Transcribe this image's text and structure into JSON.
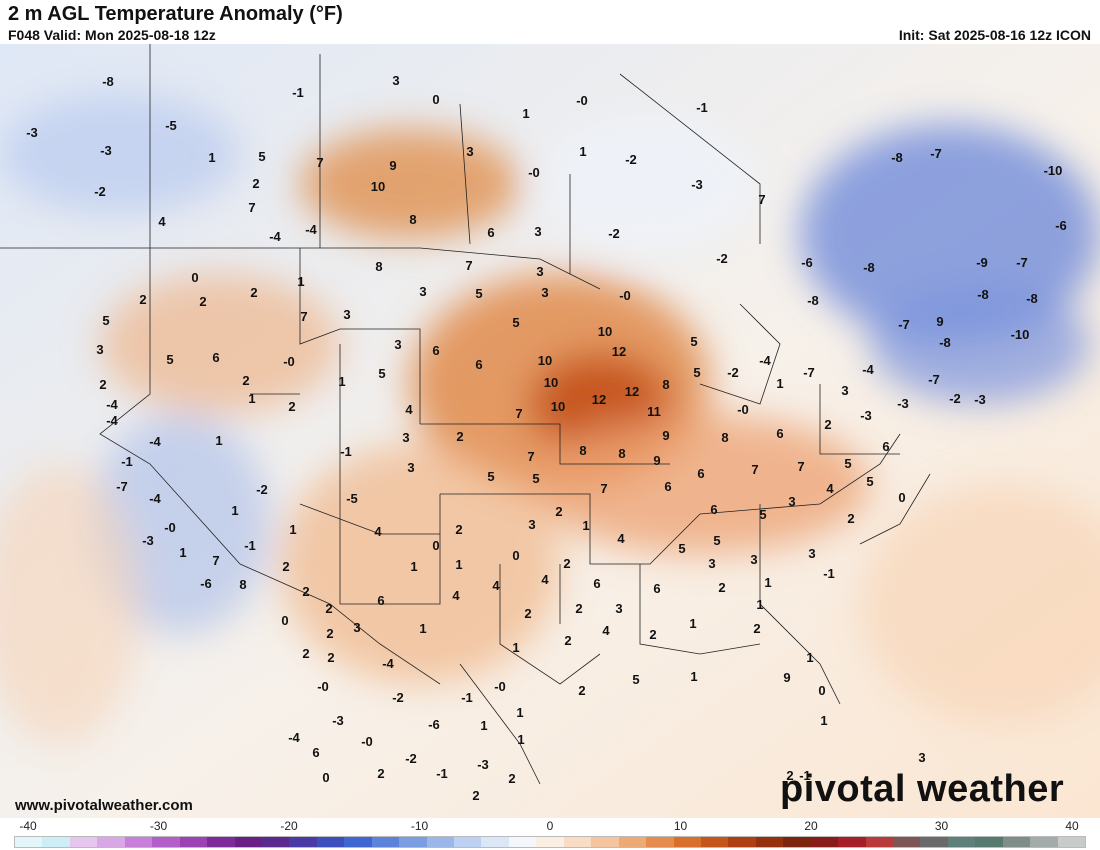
{
  "header": {
    "title": "2 m AGL Temperature Anomaly (°F)",
    "valid": "F048 Valid: Mon 2025-08-18 12z",
    "init": "Init: Sat 2025-08-16 12z ICON"
  },
  "footer": {
    "site": "www.pivotalweather.com",
    "brand": "pivotal weather"
  },
  "colorbar": {
    "ticks": [
      "-40",
      "-30",
      "-20",
      "-10",
      "0",
      "10",
      "20",
      "30",
      "40"
    ],
    "colors": [
      "#e3f7fb",
      "#cdeef6",
      "#e6c6ef",
      "#d9a6e6",
      "#c77fd9",
      "#b25fc9",
      "#9b43b5",
      "#7f2a9b",
      "#6a1f86",
      "#5c2a8f",
      "#4a3aa6",
      "#3d4fbd",
      "#3f66d1",
      "#5c82d9",
      "#7b9ee2",
      "#9bb7ea",
      "#bcd0f1",
      "#dbe6f7",
      "#f3f6fb",
      "#fbeee3",
      "#f8dcc4",
      "#f3c49d",
      "#eeaa74",
      "#e58c4c",
      "#d86f2b",
      "#c5561b",
      "#ad3f12",
      "#94300e",
      "#7d2410",
      "#8a1b1b",
      "#a51f2a",
      "#b93a3a",
      "#7d5656",
      "#6b6a6a",
      "#5e7f7a",
      "#567a70",
      "#7f8e89",
      "#a3acaa",
      "#c7cbca"
    ]
  },
  "map_labels": [
    [
      "-8",
      108,
      81
    ],
    [
      "-1",
      298,
      92
    ],
    [
      "3",
      396,
      80
    ],
    [
      "0",
      436,
      99
    ],
    [
      "-0",
      582,
      100
    ],
    [
      "-1",
      702,
      107
    ],
    [
      "-5",
      171,
      125
    ],
    [
      "-3",
      32,
      132
    ],
    [
      "1",
      526,
      113
    ],
    [
      "-3",
      106,
      150
    ],
    [
      "1",
      212,
      157
    ],
    [
      "5",
      262,
      156
    ],
    [
      "7",
      320,
      162
    ],
    [
      "9",
      393,
      165
    ],
    [
      "3",
      470,
      151
    ],
    [
      "1",
      583,
      151
    ],
    [
      "-2",
      631,
      159
    ],
    [
      "-8",
      897,
      157
    ],
    [
      "-7",
      936,
      153
    ],
    [
      "-10",
      1053,
      170
    ],
    [
      "-2",
      100,
      191
    ],
    [
      "2",
      256,
      183
    ],
    [
      "10",
      378,
      186
    ],
    [
      "-0",
      534,
      172
    ],
    [
      "-3",
      697,
      184
    ],
    [
      "7",
      762,
      199
    ],
    [
      "4",
      162,
      221
    ],
    [
      "7",
      252,
      207
    ],
    [
      "8",
      413,
      219
    ],
    [
      "6",
      491,
      232
    ],
    [
      "3",
      538,
      231
    ],
    [
      "-4",
      275,
      236
    ],
    [
      "-4",
      311,
      229
    ],
    [
      "-2",
      614,
      233
    ],
    [
      "-6",
      1061,
      225
    ],
    [
      "-2",
      722,
      258
    ],
    [
      "-6",
      807,
      262
    ],
    [
      "-8",
      869,
      267
    ],
    [
      "-9",
      982,
      262
    ],
    [
      "-7",
      1022,
      262
    ],
    [
      "0",
      195,
      277
    ],
    [
      "1",
      301,
      281
    ],
    [
      "8",
      379,
      266
    ],
    [
      "7",
      469,
      265
    ],
    [
      "3",
      540,
      271
    ],
    [
      "-8",
      983,
      294
    ],
    [
      "-8",
      1032,
      298
    ],
    [
      "2",
      143,
      299
    ],
    [
      "2",
      203,
      301
    ],
    [
      "2",
      254,
      292
    ],
    [
      "3",
      423,
      291
    ],
    [
      "5",
      479,
      293
    ],
    [
      "3",
      545,
      292
    ],
    [
      "-0",
      625,
      295
    ],
    [
      "-8",
      813,
      300
    ],
    [
      "5",
      106,
      320
    ],
    [
      "7",
      304,
      316
    ],
    [
      "3",
      347,
      314
    ],
    [
      "5",
      516,
      322
    ],
    [
      "10",
      605,
      331
    ],
    [
      "-7",
      904,
      324
    ],
    [
      "9",
      940,
      321
    ],
    [
      "-10",
      1020,
      334
    ],
    [
      "3",
      100,
      349
    ],
    [
      "5",
      170,
      359
    ],
    [
      "6",
      216,
      357
    ],
    [
      "-0",
      289,
      361
    ],
    [
      "3",
      398,
      344
    ],
    [
      "6",
      436,
      350
    ],
    [
      "6",
      479,
      364
    ],
    [
      "10",
      545,
      360
    ],
    [
      "12",
      619,
      351
    ],
    [
      "5",
      694,
      341
    ],
    [
      "-8",
      945,
      342
    ],
    [
      "2",
      103,
      384
    ],
    [
      "2",
      246,
      380
    ],
    [
      "1",
      342,
      381
    ],
    [
      "5",
      382,
      373
    ],
    [
      "10",
      551,
      382
    ],
    [
      "8",
      666,
      384
    ],
    [
      "-4",
      765,
      360
    ],
    [
      "-2",
      733,
      372
    ],
    [
      "-7",
      809,
      372
    ],
    [
      "-4",
      868,
      369
    ],
    [
      "-7",
      934,
      379
    ],
    [
      "-4",
      112,
      420
    ],
    [
      "-4",
      155,
      441
    ],
    [
      "1",
      219,
      440
    ],
    [
      "2",
      292,
      406
    ],
    [
      "4",
      409,
      409
    ],
    [
      "7",
      519,
      413
    ],
    [
      "10",
      558,
      406
    ],
    [
      "12",
      599,
      399
    ],
    [
      "12",
      632,
      391
    ],
    [
      "11",
      654,
      411
    ],
    [
      "5",
      697,
      372
    ],
    [
      "1",
      780,
      383
    ],
    [
      "3",
      845,
      390
    ],
    [
      "-3",
      903,
      403
    ],
    [
      "-2",
      955,
      398
    ],
    [
      "-3",
      980,
      399
    ],
    [
      "-1",
      127,
      461
    ],
    [
      "1",
      252,
      398
    ],
    [
      "-1",
      346,
      451
    ],
    [
      "3",
      406,
      437
    ],
    [
      "2",
      460,
      436
    ],
    [
      "7",
      531,
      456
    ],
    [
      "8",
      583,
      450
    ],
    [
      "8",
      622,
      453
    ],
    [
      "9",
      666,
      435
    ],
    [
      "8",
      725,
      437
    ],
    [
      "-0",
      743,
      409
    ],
    [
      "6",
      780,
      433
    ],
    [
      "2",
      828,
      424
    ],
    [
      "-3",
      866,
      415
    ],
    [
      "6",
      886,
      446
    ],
    [
      "7",
      755,
      469
    ],
    [
      "7",
      801,
      466
    ],
    [
      "5",
      848,
      463
    ],
    [
      "-4",
      112,
      404
    ],
    [
      "3",
      411,
      467
    ],
    [
      "5",
      491,
      476
    ],
    [
      "5",
      536,
      478
    ],
    [
      "9",
      657,
      460
    ],
    [
      "6",
      701,
      473
    ],
    [
      "7",
      604,
      488
    ],
    [
      "6",
      668,
      486
    ],
    [
      "5",
      870,
      481
    ],
    [
      "4",
      830,
      488
    ],
    [
      "-2",
      262,
      489
    ],
    [
      "-5",
      352,
      498
    ],
    [
      "-7",
      122,
      486
    ],
    [
      "-4",
      155,
      498
    ],
    [
      "1",
      235,
      510
    ],
    [
      "1",
      293,
      529
    ],
    [
      "4",
      378,
      531
    ],
    [
      "2",
      459,
      529
    ],
    [
      "2",
      559,
      511
    ],
    [
      "3",
      532,
      524
    ],
    [
      "1",
      586,
      525
    ],
    [
      "6",
      714,
      509
    ],
    [
      "5",
      763,
      514
    ],
    [
      "3",
      792,
      501
    ],
    [
      "2",
      851,
      518
    ],
    [
      "0",
      902,
      497
    ],
    [
      "-0",
      170,
      527
    ],
    [
      "-3",
      148,
      540
    ],
    [
      "-1",
      250,
      545
    ],
    [
      "0",
      436,
      545
    ],
    [
      "4",
      621,
      538
    ],
    [
      "5",
      682,
      548
    ],
    [
      "5",
      717,
      540
    ],
    [
      "3",
      754,
      559
    ],
    [
      "3",
      812,
      553
    ],
    [
      "1",
      183,
      552
    ],
    [
      "7",
      216,
      560
    ],
    [
      "1",
      414,
      566
    ],
    [
      "1",
      459,
      564
    ],
    [
      "0",
      516,
      555
    ],
    [
      "2",
      567,
      563
    ],
    [
      "-6",
      206,
      583
    ],
    [
      "8",
      243,
      584
    ],
    [
      "2",
      286,
      566
    ],
    [
      "4",
      456,
      595
    ],
    [
      "4",
      496,
      585
    ],
    [
      "4",
      545,
      579
    ],
    [
      "6",
      597,
      583
    ],
    [
      "3",
      712,
      563
    ],
    [
      "2",
      722,
      587
    ],
    [
      "1",
      768,
      582
    ],
    [
      "-1",
      829,
      573
    ],
    [
      "2",
      306,
      591
    ],
    [
      "0",
      285,
      620
    ],
    [
      "2",
      329,
      608
    ],
    [
      "6",
      381,
      600
    ],
    [
      "2",
      528,
      613
    ],
    [
      "2",
      579,
      608
    ],
    [
      "3",
      619,
      608
    ],
    [
      "6",
      657,
      588
    ],
    [
      "1",
      760,
      604
    ],
    [
      "3",
      357,
      627
    ],
    [
      "1",
      423,
      628
    ],
    [
      "1",
      516,
      647
    ],
    [
      "2",
      568,
      640
    ],
    [
      "4",
      606,
      630
    ],
    [
      "2",
      653,
      634
    ],
    [
      "1",
      693,
      623
    ],
    [
      "2",
      757,
      628
    ],
    [
      "2",
      306,
      653
    ],
    [
      "2",
      331,
      657
    ],
    [
      "-4",
      388,
      663
    ],
    [
      "1",
      810,
      657
    ],
    [
      "-0",
      323,
      686
    ],
    [
      "2",
      330,
      633
    ],
    [
      "-2",
      398,
      697
    ],
    [
      "-1",
      467,
      697
    ],
    [
      "-0",
      500,
      686
    ],
    [
      "2",
      582,
      690
    ],
    [
      "5",
      636,
      679
    ],
    [
      "1",
      694,
      676
    ],
    [
      "9",
      787,
      677
    ],
    [
      "0",
      822,
      690
    ],
    [
      "-3",
      338,
      720
    ],
    [
      "-6",
      434,
      724
    ],
    [
      "1",
      484,
      725
    ],
    [
      "1",
      520,
      712
    ],
    [
      "1",
      824,
      720
    ],
    [
      "3",
      922,
      757
    ],
    [
      "-4",
      294,
      737
    ],
    [
      "-0",
      367,
      741
    ],
    [
      "-2",
      411,
      758
    ],
    [
      "1",
      521,
      739
    ],
    [
      "-3",
      483,
      764
    ],
    [
      "6",
      316,
      752
    ],
    [
      "0",
      326,
      777
    ],
    [
      "2",
      381,
      773
    ],
    [
      "-1",
      442,
      773
    ],
    [
      "2",
      512,
      778
    ],
    [
      "2",
      476,
      795
    ],
    [
      "2",
      790,
      775
    ],
    [
      "-1",
      805,
      775
    ]
  ]
}
